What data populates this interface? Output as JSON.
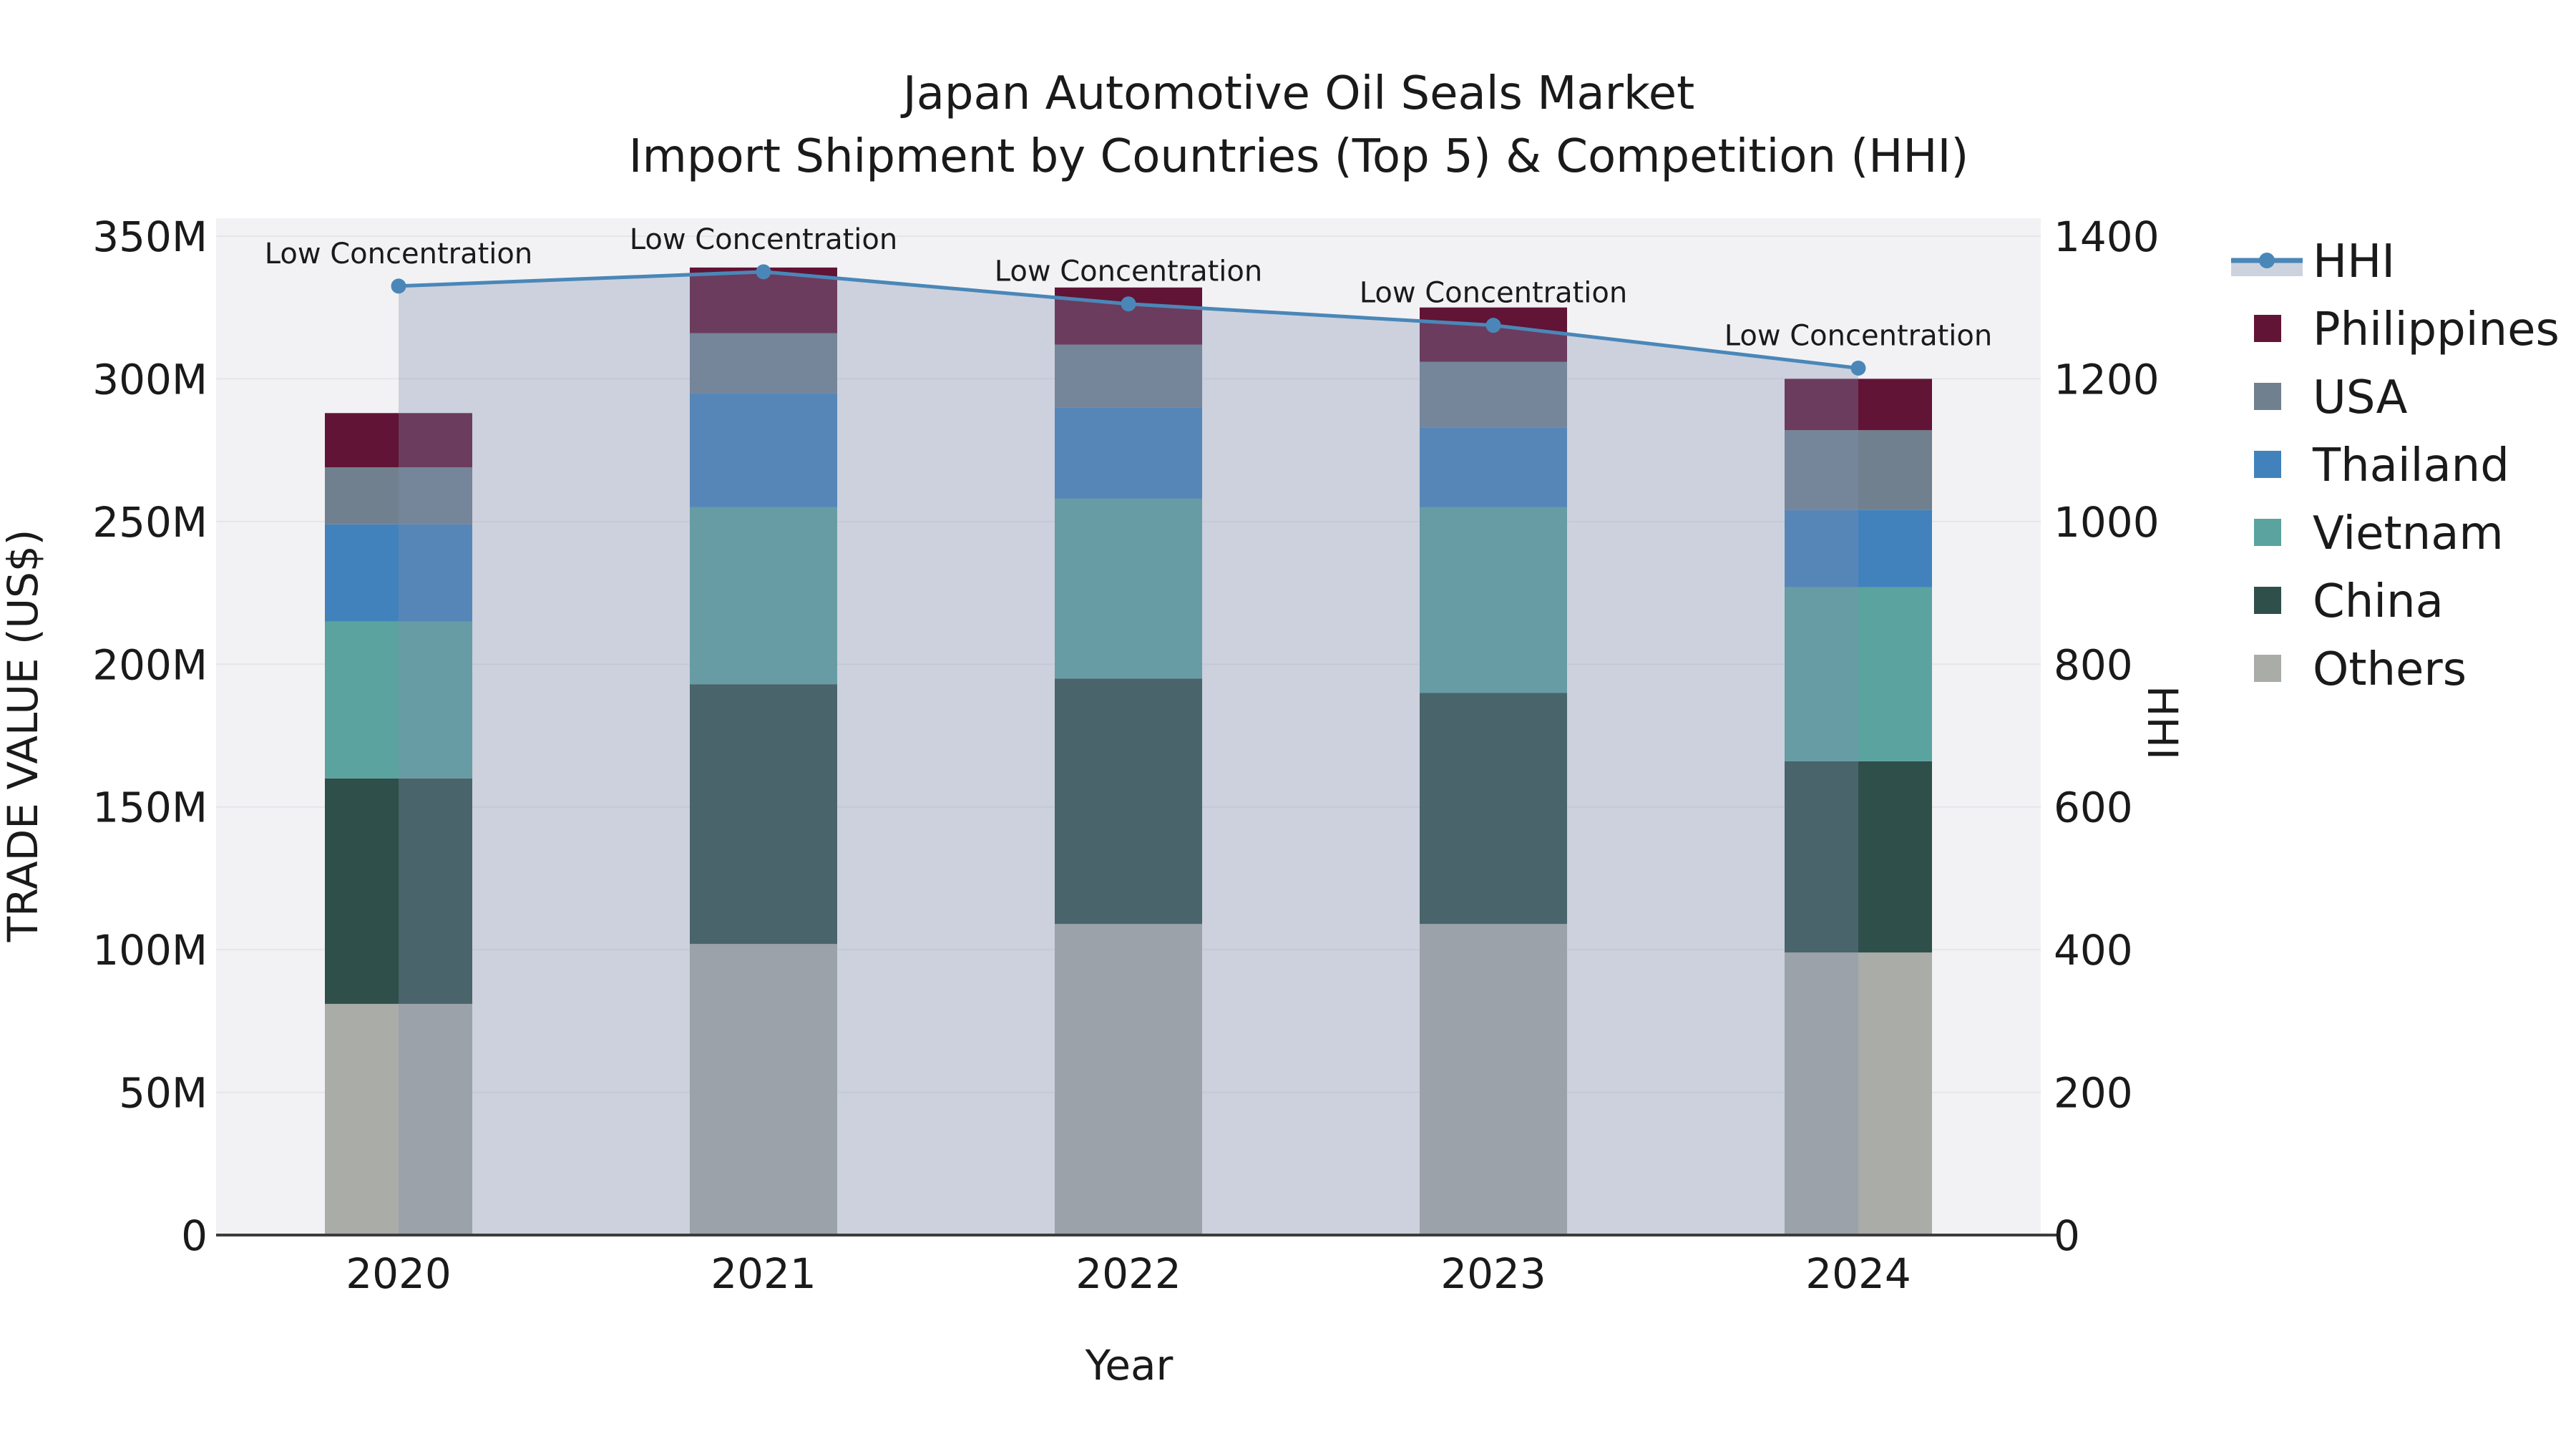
{
  "title": {
    "line1": "Japan Automotive Oil Seals Market",
    "line2": "Import Shipment by Countries (Top 5) & Competition (HHI)"
  },
  "axes": {
    "y_left": {
      "title": "TRADE VALUE (US$)",
      "tick_labels": [
        "0",
        "50M",
        "100M",
        "150M",
        "200M",
        "250M",
        "300M",
        "350M"
      ],
      "range": [
        0,
        350
      ]
    },
    "y_right": {
      "title": "HHI",
      "tick_labels": [
        "0",
        "200",
        "400",
        "600",
        "800",
        "1000",
        "1200",
        "1400"
      ],
      "range": [
        0,
        1400
      ]
    },
    "x": {
      "title": "Year",
      "tick_labels": [
        "2020",
        "2021",
        "2022",
        "2023",
        "2024"
      ]
    }
  },
  "colors": {
    "hhi_line": "#4a87b8",
    "hhi_fill": "rgba(128,144,175,0.33)",
    "hhi_legend_band": "#ccd3de",
    "philippines": "#611435",
    "usa": "#71808f",
    "thailand": "#4282bc",
    "vietnam": "#5ba39f",
    "china": "#2f4f4a",
    "others": "#aaaca8",
    "plot_bg": "#f2f2f4",
    "grid": "#e6e6e9",
    "axis_line": "#3c3c3c",
    "text": "#1a1a1a"
  },
  "legend": {
    "items": [
      {
        "label": "HHI",
        "type": "line",
        "color_key": "hhi_line"
      },
      {
        "label": "Philippines",
        "type": "square",
        "color_key": "philippines"
      },
      {
        "label": "USA",
        "type": "square",
        "color_key": "usa"
      },
      {
        "label": "Thailand",
        "type": "square",
        "color_key": "thailand"
      },
      {
        "label": "Vietnam",
        "type": "square",
        "color_key": "vietnam"
      },
      {
        "label": "China",
        "type": "square",
        "color_key": "china"
      },
      {
        "label": "Others",
        "type": "square",
        "color_key": "others"
      }
    ]
  },
  "chart_data": {
    "type": "stacked-bar+line",
    "categories": [
      "2020",
      "2021",
      "2022",
      "2023",
      "2024"
    ],
    "bar_series_bottom_to_top": [
      {
        "name": "Others",
        "color_key": "others",
        "values": [
          81,
          102,
          109,
          109,
          99
        ]
      },
      {
        "name": "China",
        "color_key": "china",
        "values": [
          79,
          91,
          86,
          81,
          67
        ]
      },
      {
        "name": "Vietnam",
        "color_key": "vietnam",
        "values": [
          55,
          62,
          63,
          65,
          61
        ]
      },
      {
        "name": "Thailand",
        "color_key": "thailand",
        "values": [
          34,
          40,
          32,
          28,
          27
        ]
      },
      {
        "name": "USA",
        "color_key": "usa",
        "values": [
          20,
          21,
          22,
          23,
          28
        ]
      },
      {
        "name": "Philippines",
        "color_key": "philippines",
        "values": [
          19,
          23,
          20,
          19,
          18
        ]
      }
    ],
    "bar_totals": [
      288,
      339,
      332,
      325,
      300
    ],
    "line_series": {
      "name": "HHI",
      "axis": "right",
      "fill_to_zero": true,
      "values": [
        1330,
        1350,
        1305,
        1275,
        1215
      ],
      "point_annotations": [
        "Low Concentration",
        "Low Concentration",
        "Low Concentration",
        "Low Concentration",
        "Low Concentration"
      ]
    },
    "ylim_left": [
      0,
      350
    ],
    "ylim_right": [
      0,
      1400
    ],
    "unit_left": "M US$",
    "grid": true,
    "legend_position": "right"
  }
}
